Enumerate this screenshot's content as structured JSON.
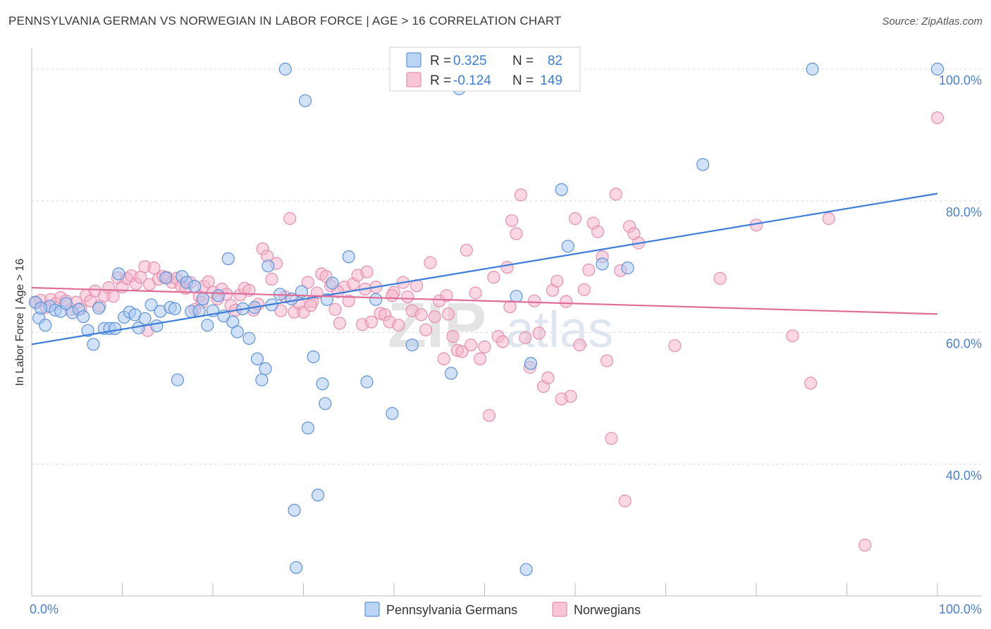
{
  "title": "PENNSYLVANIA GERMAN VS NORWEGIAN IN LABOR FORCE | AGE > 16 CORRELATION CHART",
  "source": "Source: ZipAtlas.com",
  "watermark": "ZIPatlas",
  "colors": {
    "blue": "#3b7dd8",
    "blue_fill": "#a9c9f2",
    "pink": "#e06d98",
    "pink_fill": "#f5b7cb",
    "grid": "#d8d8d8",
    "tick_label": "#4a80d0"
  },
  "legend": {
    "rows": [
      {
        "r_label": "R =",
        "r_value": " 0.325",
        "n_label": "N =",
        "n_value": "82"
      },
      {
        "r_label": "R =",
        "r_value": "-0.124",
        "n_label": "N =",
        "n_value": "149"
      }
    ]
  },
  "chart_data": {
    "type": "scatter",
    "title": "PENNSYLVANIA GERMAN VS NORWEGIAN IN LABOR FORCE | AGE > 16 CORRELATION CHART",
    "xlabel": "",
    "ylabel": "In Labor Force | Age > 16",
    "xlim": [
      0,
      100
    ],
    "ylim": [
      20,
      103
    ],
    "x_tick_labels": [
      "0.0%",
      "100.0%"
    ],
    "y_ticks": [
      40,
      60,
      80,
      100
    ],
    "y_tick_labels": [
      "40.0%",
      "60.0%",
      "80.0%",
      "100.0%"
    ],
    "grid": true,
    "legend_position": "bottom",
    "series": [
      {
        "name": "Pennsylvania Germans",
        "color": "#3b7dd8",
        "R": 0.325,
        "N": 82,
        "trend": {
          "x": [
            0,
            100
          ],
          "y": [
            58.2,
            81.1
          ]
        },
        "points": [
          [
            0.8,
            62.2
          ],
          [
            1.5,
            61.1
          ],
          [
            2.0,
            64.0
          ],
          [
            2.6,
            63.4
          ],
          [
            3.2,
            63.2
          ],
          [
            3.8,
            64.4
          ],
          [
            4.5,
            63.0
          ],
          [
            5.2,
            63.5
          ],
          [
            5.7,
            62.4
          ],
          [
            6.2,
            60.3
          ],
          [
            6.8,
            58.2
          ],
          [
            7.4,
            63.7
          ],
          [
            8.0,
            60.6
          ],
          [
            8.6,
            60.6
          ],
          [
            9.2,
            60.6
          ],
          [
            9.6,
            68.9
          ],
          [
            10.2,
            62.3
          ],
          [
            10.8,
            63.1
          ],
          [
            11.4,
            62.7
          ],
          [
            11.8,
            60.7
          ],
          [
            12.5,
            62.1
          ],
          [
            13.2,
            64.2
          ],
          [
            13.8,
            61.0
          ],
          [
            14.2,
            63.2
          ],
          [
            14.8,
            68.3
          ],
          [
            15.3,
            63.8
          ],
          [
            15.8,
            63.6
          ],
          [
            16.1,
            52.8
          ],
          [
            16.6,
            68.5
          ],
          [
            17.1,
            67.6
          ],
          [
            17.6,
            63.2
          ],
          [
            18.0,
            67.0
          ],
          [
            18.5,
            63.3
          ],
          [
            18.9,
            65.1
          ],
          [
            19.4,
            61.1
          ],
          [
            20.0,
            63.3
          ],
          [
            20.6,
            65.6
          ],
          [
            21.2,
            62.5
          ],
          [
            21.7,
            71.2
          ],
          [
            22.2,
            61.6
          ],
          [
            22.7,
            60.1
          ],
          [
            23.3,
            63.6
          ],
          [
            24.0,
            59.1
          ],
          [
            24.6,
            63.8
          ],
          [
            24.9,
            56.0
          ],
          [
            25.4,
            52.8
          ],
          [
            25.8,
            54.5
          ],
          [
            26.1,
            70.1
          ],
          [
            26.5,
            64.2
          ],
          [
            27.4,
            65.8
          ],
          [
            28.0,
            100.0
          ],
          [
            28.7,
            65.1
          ],
          [
            29.0,
            33.0
          ],
          [
            29.2,
            24.3
          ],
          [
            29.8,
            66.2
          ],
          [
            30.2,
            95.2
          ],
          [
            30.5,
            45.5
          ],
          [
            31.1,
            56.3
          ],
          [
            31.6,
            35.3
          ],
          [
            32.1,
            52.2
          ],
          [
            32.4,
            49.2
          ],
          [
            32.6,
            65.0
          ],
          [
            33.2,
            67.5
          ],
          [
            35.0,
            71.5
          ],
          [
            37.0,
            52.5
          ],
          [
            38.0,
            65.0
          ],
          [
            39.8,
            47.7
          ],
          [
            42.0,
            58.1
          ],
          [
            46.3,
            53.8
          ],
          [
            47.2,
            97.0
          ],
          [
            53.5,
            65.5
          ],
          [
            54.6,
            24.0
          ],
          [
            55.1,
            55.3
          ],
          [
            58.5,
            81.7
          ],
          [
            59.2,
            73.1
          ],
          [
            63.0,
            70.4
          ],
          [
            65.8,
            69.8
          ],
          [
            74.1,
            85.5
          ],
          [
            86.2,
            100.0
          ],
          [
            100.0,
            100.0
          ],
          [
            0.4,
            64.6
          ],
          [
            1.0,
            63.7
          ]
        ]
      },
      {
        "name": "Norwegians",
        "color": "#e06d98",
        "R": -0.124,
        "N": 149,
        "trend": {
          "x": [
            0,
            100
          ],
          "y": [
            66.8,
            62.8
          ]
        },
        "points": [
          [
            0.5,
            64.5
          ],
          [
            1.0,
            64.9
          ],
          [
            1.6,
            63.8
          ],
          [
            2.1,
            65.0
          ],
          [
            2.7,
            64.4
          ],
          [
            3.2,
            65.3
          ],
          [
            3.8,
            64.8
          ],
          [
            4.3,
            63.5
          ],
          [
            4.9,
            64.6
          ],
          [
            5.4,
            63.6
          ],
          [
            6.0,
            65.6
          ],
          [
            6.5,
            64.8
          ],
          [
            7.0,
            66.3
          ],
          [
            7.5,
            64.0
          ],
          [
            8.0,
            65.6
          ],
          [
            8.5,
            66.8
          ],
          [
            9.0,
            65.5
          ],
          [
            9.5,
            68.3
          ],
          [
            10.0,
            66.9
          ],
          [
            10.5,
            68.2
          ],
          [
            11.0,
            68.6
          ],
          [
            11.5,
            67.4
          ],
          [
            12.0,
            68.4
          ],
          [
            12.5,
            70.0
          ],
          [
            13.0,
            67.3
          ],
          [
            13.5,
            69.8
          ],
          [
            14.0,
            68.1
          ],
          [
            14.5,
            68.5
          ],
          [
            15.0,
            68.3
          ],
          [
            15.5,
            67.6
          ],
          [
            16.0,
            68.2
          ],
          [
            16.5,
            67.1
          ],
          [
            17.0,
            66.7
          ],
          [
            17.5,
            67.6
          ],
          [
            18.0,
            63.5
          ],
          [
            18.5,
            65.5
          ],
          [
            19.0,
            67.0
          ],
          [
            19.5,
            67.7
          ],
          [
            20.0,
            66.1
          ],
          [
            20.5,
            65.1
          ],
          [
            21.0,
            66.6
          ],
          [
            21.5,
            65.8
          ],
          [
            22.0,
            64.1
          ],
          [
            22.5,
            63.4
          ],
          [
            23.0,
            65.7
          ],
          [
            23.5,
            66.7
          ],
          [
            24.0,
            66.4
          ],
          [
            24.5,
            63.4
          ],
          [
            25.0,
            64.3
          ],
          [
            25.5,
            72.7
          ],
          [
            26.0,
            71.6
          ],
          [
            26.5,
            68.1
          ],
          [
            27.0,
            70.5
          ],
          [
            27.5,
            63.3
          ],
          [
            28.0,
            65.4
          ],
          [
            28.5,
            77.3
          ],
          [
            29.0,
            63.1
          ],
          [
            29.5,
            64.4
          ],
          [
            30.0,
            63.1
          ],
          [
            30.5,
            67.6
          ],
          [
            31.0,
            64.7
          ],
          [
            31.5,
            66.0
          ],
          [
            32.0,
            68.9
          ],
          [
            32.5,
            68.5
          ],
          [
            33.0,
            67.1
          ],
          [
            33.5,
            63.5
          ],
          [
            34.0,
            61.4
          ],
          [
            34.5,
            66.9
          ],
          [
            35.0,
            64.8
          ],
          [
            35.5,
            67.4
          ],
          [
            36.0,
            68.7
          ],
          [
            36.5,
            61.2
          ],
          [
            37.0,
            69.2
          ],
          [
            37.5,
            61.6
          ],
          [
            38.0,
            66.9
          ],
          [
            38.5,
            62.9
          ],
          [
            39.0,
            62.7
          ],
          [
            39.5,
            61.6
          ],
          [
            40.0,
            66.1
          ],
          [
            40.5,
            61.1
          ],
          [
            41.0,
            67.6
          ],
          [
            41.5,
            65.4
          ],
          [
            42.0,
            63.3
          ],
          [
            42.5,
            67.1
          ],
          [
            43.0,
            62.7
          ],
          [
            43.5,
            60.4
          ],
          [
            44.0,
            70.6
          ],
          [
            44.5,
            62.4
          ],
          [
            45.0,
            64.8
          ],
          [
            45.5,
            56.0
          ],
          [
            46.0,
            62.8
          ],
          [
            46.5,
            59.4
          ],
          [
            47.0,
            57.3
          ],
          [
            47.5,
            57.1
          ],
          [
            48.0,
            72.5
          ],
          [
            48.5,
            58.1
          ],
          [
            49.0,
            66.0
          ],
          [
            49.5,
            56.0
          ],
          [
            50.0,
            57.8
          ],
          [
            50.5,
            47.4
          ],
          [
            51.0,
            68.4
          ],
          [
            51.5,
            59.4
          ],
          [
            52.0,
            58.6
          ],
          [
            52.5,
            69.9
          ],
          [
            53.0,
            77.0
          ],
          [
            53.5,
            75.0
          ],
          [
            54.0,
            80.9
          ],
          [
            54.5,
            59.2
          ],
          [
            55.0,
            54.7
          ],
          [
            55.5,
            64.8
          ],
          [
            56.0,
            59.9
          ],
          [
            56.5,
            51.8
          ],
          [
            57.0,
            53.1
          ],
          [
            57.5,
            66.4
          ],
          [
            58.0,
            67.8
          ],
          [
            58.5,
            49.9
          ],
          [
            59.0,
            64.7
          ],
          [
            59.5,
            50.3
          ],
          [
            60.0,
            77.3
          ],
          [
            60.5,
            58.1
          ],
          [
            61.0,
            66.5
          ],
          [
            61.5,
            69.5
          ],
          [
            62.0,
            76.6
          ],
          [
            62.5,
            75.3
          ],
          [
            63.0,
            71.5
          ],
          [
            63.5,
            55.7
          ],
          [
            64.0,
            43.9
          ],
          [
            64.5,
            81.0
          ],
          [
            65.0,
            69.4
          ],
          [
            65.5,
            34.4
          ],
          [
            66.0,
            76.1
          ],
          [
            66.5,
            75.0
          ],
          [
            67.0,
            73.6
          ],
          [
            71.0,
            58.0
          ],
          [
            76.0,
            68.2
          ],
          [
            80.0,
            76.3
          ],
          [
            84.0,
            59.5
          ],
          [
            86.0,
            52.3
          ],
          [
            88.0,
            77.3
          ],
          [
            92.0,
            27.7
          ],
          [
            100.0,
            92.6
          ],
          [
            12.8,
            60.3
          ],
          [
            18.8,
            64.6
          ],
          [
            30.8,
            64.1
          ],
          [
            33.8,
            66.2
          ],
          [
            36.8,
            66.6
          ],
          [
            39.8,
            65.6
          ],
          [
            45.8,
            65.6
          ],
          [
            52.8,
            63.9
          ]
        ]
      }
    ]
  }
}
